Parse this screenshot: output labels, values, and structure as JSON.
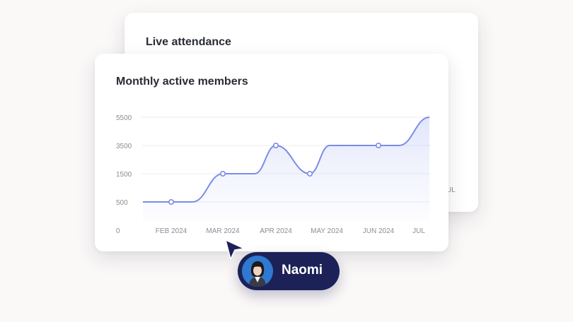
{
  "back_card": {
    "title": "Live attendance",
    "partial_tick": "JUL"
  },
  "front_card": {
    "title": "Monthly active members"
  },
  "chart_data": {
    "type": "area",
    "title": "Monthly active members",
    "xlabel": "",
    "ylabel": "",
    "y_ticks": [
      "5500",
      "3500",
      "1500",
      "500",
      "0"
    ],
    "x_ticks": [
      "FEB 2024",
      "MAR 2024",
      "APR 2024",
      "MAY 2024",
      "JUN 2024",
      "JUL"
    ],
    "grid": true,
    "series": [
      {
        "color": "#7b8ce6",
        "points": [
          {
            "x": "FEB 2024",
            "y": 500
          },
          {
            "x": "MAR 2024",
            "y": 1500
          },
          {
            "x": "APR 2024",
            "y": 3500
          },
          {
            "x": "MAY 2024",
            "y": 1500
          },
          {
            "x": "JUN 2024",
            "y": 3500
          },
          {
            "x": "JUL",
            "y": 5500
          }
        ]
      }
    ]
  },
  "presence": {
    "name": "Naomi",
    "pill_color": "#1c2257",
    "cursor_color": "#1c2257"
  }
}
